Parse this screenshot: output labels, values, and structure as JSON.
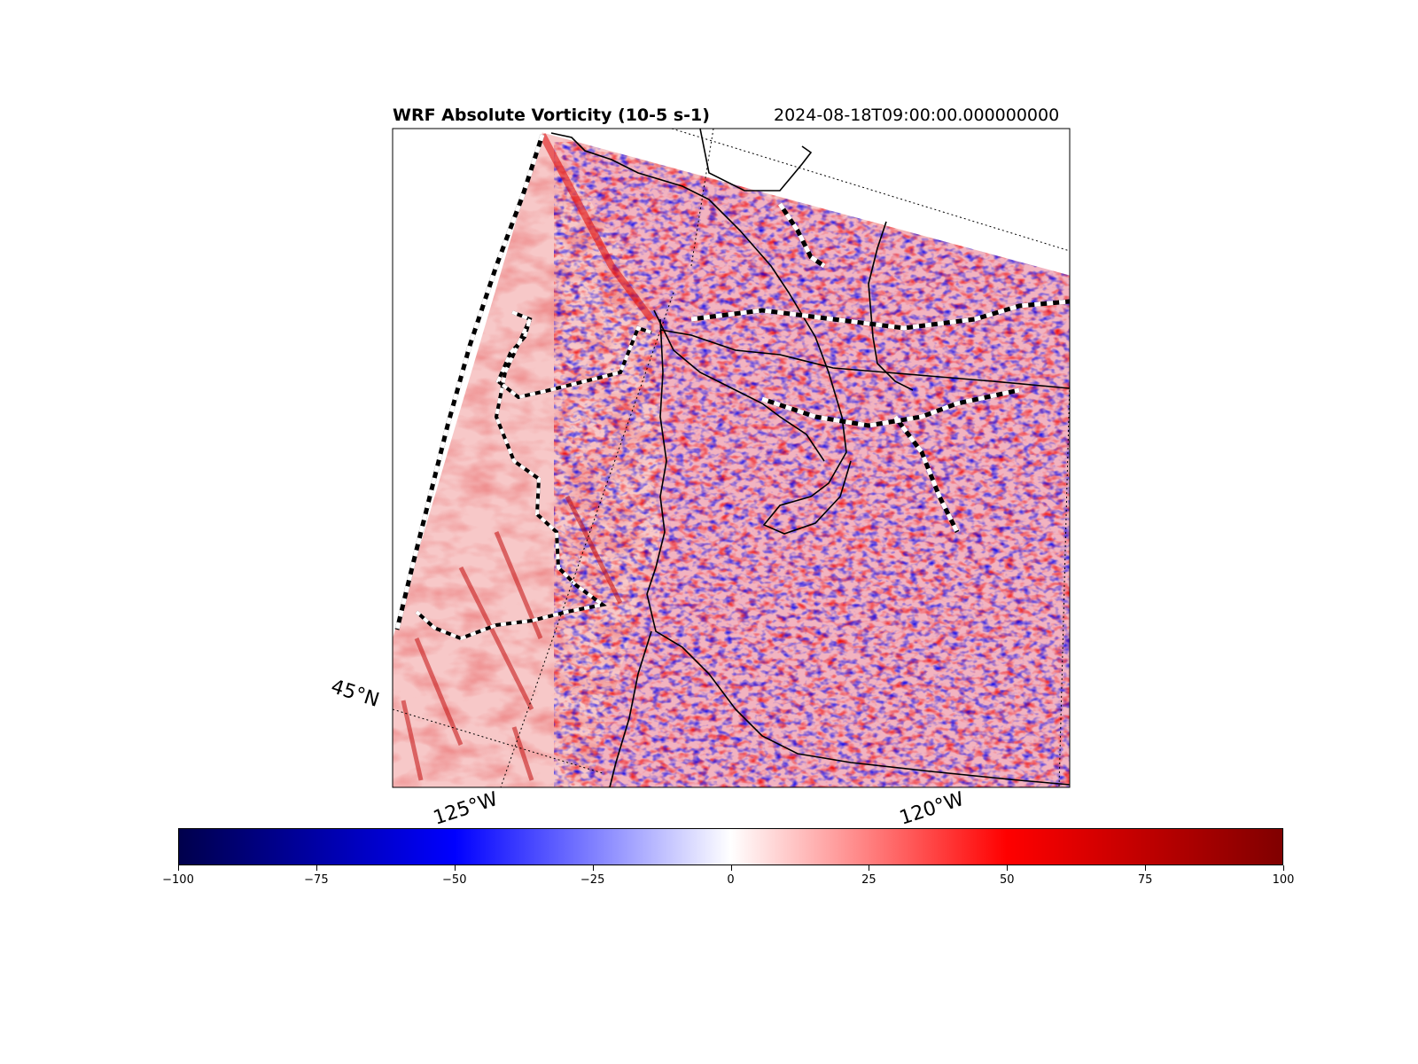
{
  "title": {
    "left": "WRF Absolute Vorticity (10-5 s-1)",
    "right": "2024-08-18T09:00:00.000000000"
  },
  "map": {
    "gridlines": {
      "latitude_labels": [
        "45°N"
      ],
      "longitude_labels": [
        "125°W",
        "120°W"
      ]
    },
    "colors": {
      "negative": "#0000ff",
      "zero": "#ffffff",
      "positive": "#ff0000"
    }
  },
  "colorbar": {
    "colormap": "seismic",
    "range": [
      -100,
      100
    ],
    "ticks": [
      "−100",
      "−75",
      "−50",
      "−25",
      "0",
      "25",
      "50",
      "75",
      "100"
    ]
  }
}
